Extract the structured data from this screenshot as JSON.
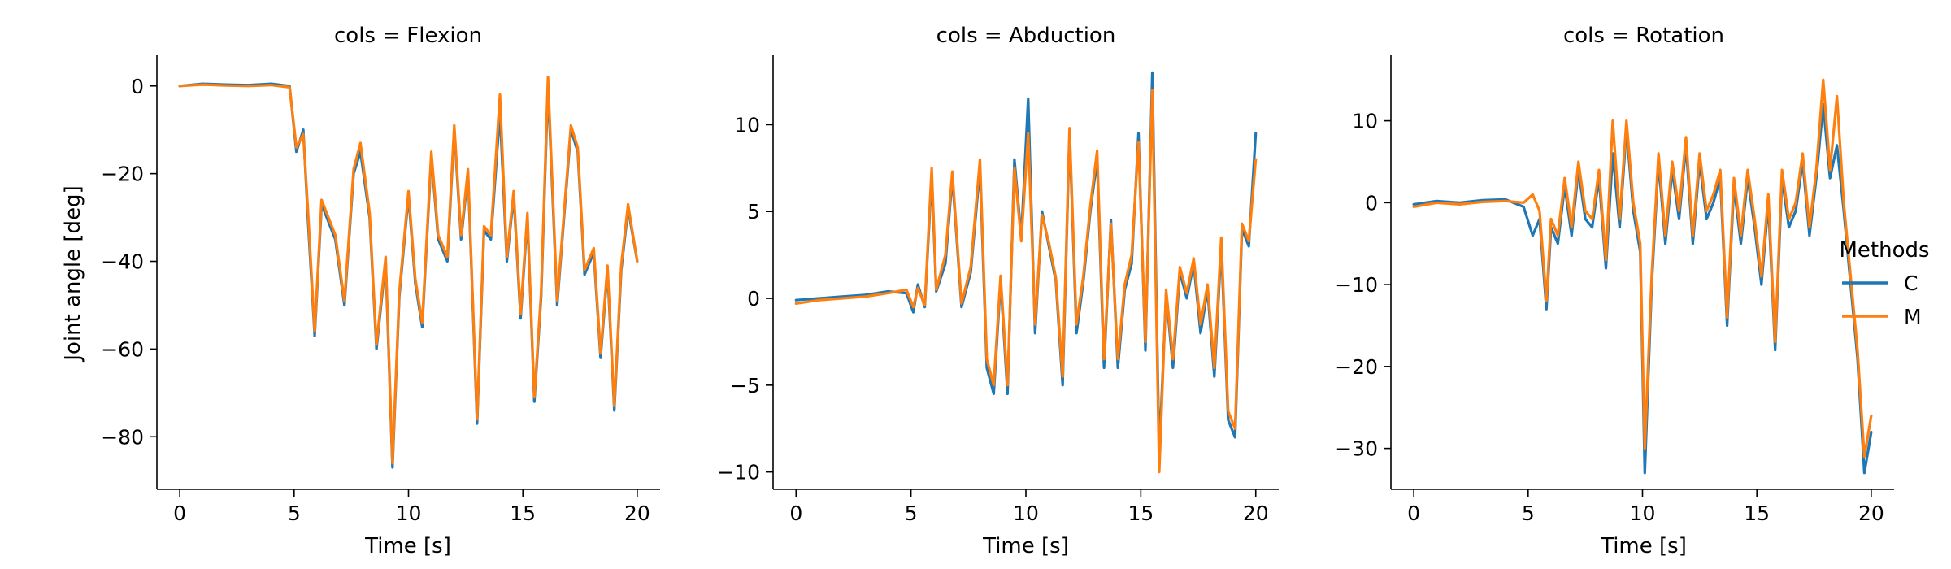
{
  "chart_data": [
    {
      "type": "line",
      "title": "cols = Flexion",
      "xlabel": "Time [s]",
      "ylabel": "Joint angle [deg]",
      "xlim": [
        -1,
        21
      ],
      "ylim": [
        -92,
        7
      ],
      "xticks": [
        0,
        5,
        10,
        15,
        20
      ],
      "yticks": [
        0,
        -20,
        -40,
        -60,
        -80
      ],
      "series": [
        {
          "name": "C",
          "color": "#1f77b4",
          "x": [
            0,
            1,
            2,
            3,
            4,
            4.8,
            5.1,
            5.4,
            5.6,
            5.9,
            6.2,
            6.8,
            7.2,
            7.6,
            7.9,
            8.3,
            8.6,
            9.0,
            9.3,
            9.6,
            10.0,
            10.3,
            10.6,
            11.0,
            11.3,
            11.7,
            12.0,
            12.3,
            12.6,
            13.0,
            13.3,
            13.6,
            14.0,
            14.3,
            14.6,
            14.9,
            15.2,
            15.5,
            15.8,
            16.1,
            16.5,
            16.8,
            17.1,
            17.4,
            17.7,
            18.1,
            18.4,
            18.7,
            19.0,
            19.3,
            19.6,
            20.0
          ],
          "y": [
            0,
            0.5,
            0.3,
            0.2,
            0.5,
            0,
            -15,
            -10,
            -30,
            -57,
            -27,
            -35,
            -50,
            -20,
            -15,
            -30,
            -60,
            -40,
            -87,
            -48,
            -25,
            -45,
            -55,
            -16,
            -35,
            -40,
            -10,
            -35,
            -20,
            -77,
            -33,
            -35,
            -6,
            -40,
            -25,
            -53,
            -30,
            -72,
            -48,
            0,
            -50,
            -30,
            -10,
            -15,
            -43,
            -38,
            -62,
            -42,
            -74,
            -42,
            -28,
            -40
          ]
        },
        {
          "name": "M",
          "color": "#ff7f0e",
          "x": [
            0,
            1,
            2,
            3,
            4,
            4.8,
            5.1,
            5.4,
            5.6,
            5.9,
            6.2,
            6.8,
            7.2,
            7.6,
            7.9,
            8.3,
            8.6,
            9.0,
            9.3,
            9.6,
            10.0,
            10.3,
            10.6,
            11.0,
            11.3,
            11.7,
            12.0,
            12.3,
            12.6,
            13.0,
            13.3,
            13.6,
            14.0,
            14.3,
            14.6,
            14.9,
            15.2,
            15.5,
            15.8,
            16.1,
            16.5,
            16.8,
            17.1,
            17.4,
            17.7,
            18.1,
            18.4,
            18.7,
            19.0,
            19.3,
            19.6,
            20.0
          ],
          "y": [
            0,
            0.3,
            0.1,
            0,
            0.2,
            -0.3,
            -14,
            -11,
            -28,
            -56,
            -26,
            -34,
            -49,
            -19,
            -13,
            -29,
            -59,
            -39,
            -86,
            -47,
            -24,
            -44,
            -54,
            -15,
            -34,
            -39,
            -9,
            -34,
            -19,
            -76,
            -32,
            -34,
            -2,
            -39,
            -24,
            -52,
            -29,
            -71,
            -47,
            2,
            -49,
            -29,
            -9,
            -14,
            -42,
            -37,
            -61,
            -41,
            -73,
            -41,
            -27,
            -40
          ]
        }
      ]
    },
    {
      "type": "line",
      "title": "cols = Abduction",
      "xlabel": "Time [s]",
      "ylabel": "",
      "xlim": [
        -1,
        21
      ],
      "ylim": [
        -11,
        14
      ],
      "xticks": [
        0,
        5,
        10,
        15,
        20
      ],
      "yticks": [
        10,
        5,
        0,
        -5,
        -10
      ],
      "series": [
        {
          "name": "C",
          "color": "#1f77b4",
          "x": [
            0,
            1,
            2,
            3,
            4,
            4.8,
            5.1,
            5.3,
            5.6,
            5.9,
            6.1,
            6.5,
            6.8,
            7.2,
            7.6,
            8.0,
            8.3,
            8.6,
            8.9,
            9.2,
            9.5,
            9.8,
            10.1,
            10.4,
            10.7,
            11.0,
            11.3,
            11.6,
            11.9,
            12.2,
            12.5,
            12.8,
            13.1,
            13.4,
            13.7,
            14.0,
            14.3,
            14.6,
            14.9,
            15.2,
            15.5,
            15.8,
            16.1,
            16.4,
            16.7,
            17.0,
            17.3,
            17.6,
            17.9,
            18.2,
            18.5,
            18.8,
            19.1,
            19.4,
            19.7,
            20.0
          ],
          "y": [
            -0.1,
            0,
            0.1,
            0.2,
            0.4,
            0.3,
            -0.8,
            0.8,
            -0.5,
            7,
            0.4,
            2,
            7,
            -0.5,
            1.5,
            7.5,
            -4,
            -5.5,
            1,
            -5.5,
            8,
            3.5,
            11.5,
            -2,
            5,
            3,
            1,
            -5,
            9.5,
            -2,
            1,
            5,
            8,
            -4,
            4.5,
            -4,
            0.5,
            2,
            9.5,
            -3,
            13,
            -9,
            0.3,
            -4,
            1.5,
            0,
            2,
            -2,
            0.5,
            -4.5,
            3,
            -7,
            -8,
            4,
            3,
            9.5
          ]
        },
        {
          "name": "M",
          "color": "#ff7f0e",
          "x": [
            0,
            1,
            2,
            3,
            4,
            4.8,
            5.1,
            5.3,
            5.6,
            5.9,
            6.1,
            6.5,
            6.8,
            7.2,
            7.6,
            8.0,
            8.3,
            8.6,
            8.9,
            9.2,
            9.5,
            9.8,
            10.1,
            10.4,
            10.7,
            11.0,
            11.3,
            11.6,
            11.9,
            12.2,
            12.5,
            12.8,
            13.1,
            13.4,
            13.7,
            14.0,
            14.3,
            14.6,
            14.9,
            15.2,
            15.5,
            15.8,
            16.1,
            16.4,
            16.7,
            17.0,
            17.3,
            17.6,
            17.9,
            18.2,
            18.5,
            18.8,
            19.1,
            19.4,
            19.7,
            20.0
          ],
          "y": [
            -0.3,
            -0.1,
            0,
            0.1,
            0.3,
            0.5,
            -0.5,
            0.6,
            -0.4,
            7.5,
            0.5,
            2.5,
            7.3,
            -0.3,
            1.8,
            8,
            -3.5,
            -5,
            1.3,
            -5,
            7.5,
            3.3,
            9.5,
            -1.5,
            4.8,
            3.2,
            1.2,
            -4.5,
            9.8,
            -1.5,
            1.3,
            5.3,
            8.5,
            -3.5,
            4.3,
            -3.5,
            0.8,
            2.5,
            9,
            -2.5,
            12,
            -10,
            0.5,
            -3.5,
            1.8,
            0.3,
            2.3,
            -1.5,
            0.8,
            -4,
            3.5,
            -6.5,
            -7.5,
            4.3,
            3.3,
            8
          ]
        }
      ]
    },
    {
      "type": "line",
      "title": "cols = Rotation",
      "xlabel": "Time [s]",
      "ylabel": "",
      "xlim": [
        -1,
        21
      ],
      "ylim": [
        -35,
        18
      ],
      "xticks": [
        0,
        5,
        10,
        15,
        20
      ],
      "yticks": [
        10,
        0,
        -10,
        -20,
        -30
      ],
      "series": [
        {
          "name": "C",
          "color": "#1f77b4",
          "x": [
            0,
            1,
            2,
            3,
            4,
            4.8,
            5.2,
            5.5,
            5.8,
            6.0,
            6.3,
            6.6,
            6.9,
            7.2,
            7.5,
            7.8,
            8.1,
            8.4,
            8.7,
            9.0,
            9.3,
            9.6,
            9.9,
            10.1,
            10.4,
            10.7,
            11.0,
            11.3,
            11.6,
            11.9,
            12.2,
            12.5,
            12.8,
            13.1,
            13.4,
            13.7,
            14.0,
            14.3,
            14.6,
            14.9,
            15.2,
            15.5,
            15.8,
            16.1,
            16.4,
            16.7,
            17.0,
            17.3,
            17.6,
            17.9,
            18.2,
            18.5,
            18.8,
            19.1,
            19.4,
            19.7,
            20.0
          ],
          "y": [
            -0.2,
            0.2,
            0,
            0.3,
            0.4,
            -0.5,
            -4,
            -2,
            -13,
            -3,
            -5,
            2,
            -4,
            4,
            -2,
            -3,
            3,
            -8,
            6,
            -3,
            9,
            -1,
            -6,
            -33,
            -10,
            5,
            -5,
            4,
            -2,
            7,
            -5,
            5,
            -2,
            0,
            3,
            -15,
            2,
            -5,
            3,
            -3,
            -10,
            0,
            -18,
            3,
            -3,
            -1,
            5,
            -4,
            3,
            12,
            3,
            7,
            -1,
            -10,
            -19,
            -33,
            -28
          ]
        },
        {
          "name": "M",
          "color": "#ff7f0e",
          "x": [
            0,
            1,
            2,
            3,
            4,
            4.8,
            5.2,
            5.5,
            5.8,
            6.0,
            6.3,
            6.6,
            6.9,
            7.2,
            7.5,
            7.8,
            8.1,
            8.4,
            8.7,
            9.0,
            9.3,
            9.6,
            9.9,
            10.1,
            10.4,
            10.7,
            11.0,
            11.3,
            11.6,
            11.9,
            12.2,
            12.5,
            12.8,
            13.1,
            13.4,
            13.7,
            14.0,
            14.3,
            14.6,
            14.9,
            15.2,
            15.5,
            15.8,
            16.1,
            16.4,
            16.7,
            17.0,
            17.3,
            17.6,
            17.9,
            18.2,
            18.5,
            18.8,
            19.1,
            19.4,
            19.7,
            20.0
          ],
          "y": [
            -0.5,
            0,
            -0.2,
            0.1,
            0.2,
            0,
            1,
            -1,
            -12,
            -2,
            -4,
            3,
            -3,
            5,
            -1,
            -2,
            4,
            -7,
            10,
            -2,
            10,
            0,
            -5,
            -30,
            -9,
            6,
            -4,
            5,
            -1,
            8,
            -4,
            6,
            -1,
            1,
            4,
            -14,
            3,
            -4,
            4,
            -2,
            -9,
            1,
            -17,
            4,
            -2,
            0,
            6,
            -3,
            4,
            15,
            4,
            13,
            0,
            -9,
            -18,
            -31,
            -26
          ]
        }
      ]
    }
  ],
  "legend": {
    "title": "Methods",
    "items": [
      {
        "label": "C",
        "color": "#1f77b4"
      },
      {
        "label": "M",
        "color": "#ff7f0e"
      }
    ]
  }
}
